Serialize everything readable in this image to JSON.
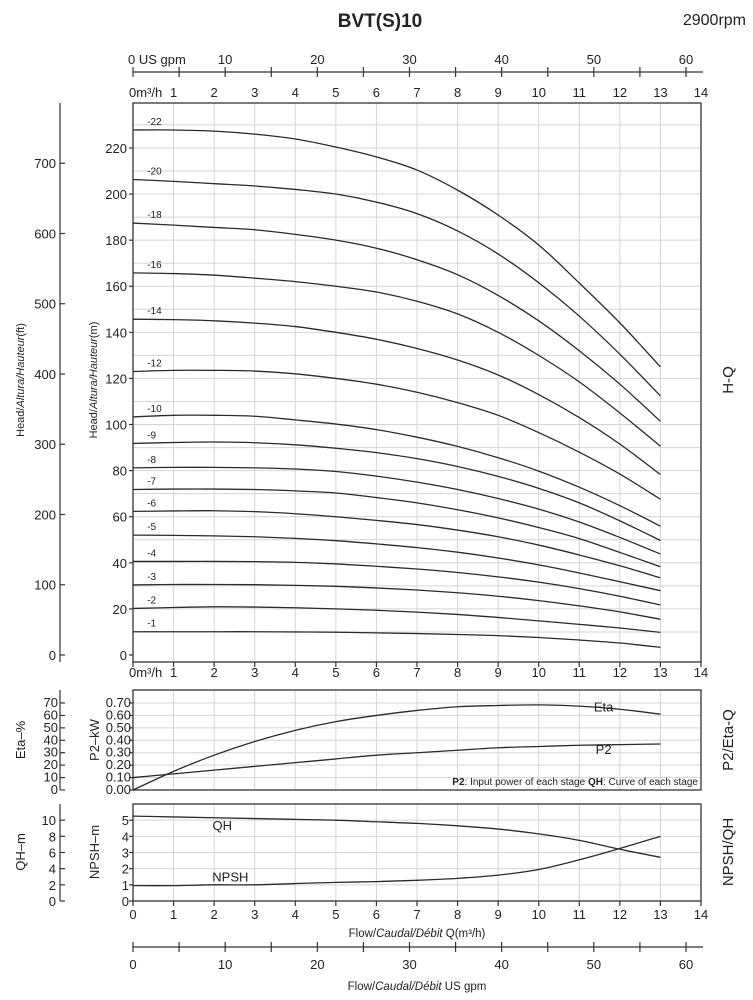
{
  "header": {
    "title": "BVT(S)10",
    "speed": "2900rpm"
  },
  "axes": {
    "flow_m3h_label_top": "0m³/h",
    "flow_m3h_label_bottom": "0m³/h",
    "flow_m3h_ticks": [
      0,
      1,
      2,
      3,
      4,
      5,
      6,
      7,
      8,
      9,
      10,
      11,
      12,
      13,
      14
    ],
    "flow_gpm_label": "0 US gpm",
    "flow_gpm_ticks": [
      0,
      10,
      20,
      30,
      40,
      50,
      60
    ],
    "flow_gpm_minor_step": 5,
    "xlabel_m3h": {
      "a": "Flow/",
      "b": "Caudal/Débit",
      "c": " Q(m³/h)"
    },
    "xlabel_gpm": {
      "a": "Flow/",
      "b": "Caudal/Débit",
      "c": "  US gpm"
    }
  },
  "chart_data": [
    {
      "id": "H-Q",
      "type": "line",
      "side_label": "H-Q",
      "ylabel_m": {
        "a": "Head/",
        "b": "Altura/Hauteur",
        "c": "(m)"
      },
      "ylabel_ft": {
        "a": "Head/",
        "b": "Altura/Hauteur",
        "c": "(ft)"
      },
      "x": [
        0,
        1,
        2,
        3,
        4,
        5,
        6,
        7,
        8,
        9,
        10,
        11,
        12,
        13
      ],
      "xlim": [
        0,
        14
      ],
      "ylim_m": [
        0,
        240
      ],
      "yticks_m": [
        0,
        20,
        40,
        60,
        80,
        100,
        120,
        140,
        160,
        180,
        200,
        220
      ],
      "yticks_ft": [
        0,
        100,
        200,
        300,
        400,
        500,
        600,
        700
      ],
      "grid": true,
      "series": [
        {
          "name": "-1",
          "values": [
            10.1,
            10.1,
            10.1,
            10.1,
            10.0,
            9.9,
            9.6,
            9.3,
            8.9,
            8.4,
            7.6,
            6.5,
            5.2,
            3.3
          ]
        },
        {
          "name": "-2",
          "values": [
            20.2,
            20.6,
            20.9,
            20.8,
            20.5,
            20.0,
            19.4,
            18.6,
            17.6,
            16.3,
            14.8,
            13.3,
            11.7,
            9.8
          ]
        },
        {
          "name": "-3",
          "values": [
            30.4,
            30.6,
            30.6,
            30.5,
            30.2,
            29.8,
            29.1,
            28.2,
            27.0,
            25.5,
            23.6,
            21.3,
            18.7,
            15.5
          ]
        },
        {
          "name": "-4",
          "values": [
            40.6,
            40.6,
            40.6,
            40.5,
            40.2,
            39.5,
            38.5,
            37.3,
            35.8,
            33.9,
            31.6,
            28.8,
            25.5,
            21.7
          ]
        },
        {
          "name": "-5",
          "values": [
            52.0,
            51.9,
            51.7,
            51.3,
            50.6,
            49.6,
            48.2,
            46.6,
            44.6,
            42.1,
            39.1,
            35.6,
            31.8,
            27.9
          ]
        },
        {
          "name": "-6",
          "values": [
            62.3,
            62.5,
            62.6,
            62.2,
            61.3,
            60.0,
            58.4,
            56.6,
            54.2,
            51.3,
            47.7,
            43.4,
            38.7,
            33.5
          ]
        },
        {
          "name": "-7",
          "values": [
            71.8,
            72.0,
            72.0,
            71.8,
            71.2,
            70.3,
            68.3,
            66.0,
            63.0,
            59.5,
            55.3,
            50.5,
            44.5,
            38.3
          ]
        },
        {
          "name": "-8",
          "values": [
            81.2,
            81.4,
            81.4,
            81.2,
            80.7,
            79.6,
            77.6,
            75.0,
            71.8,
            67.9,
            63.3,
            57.7,
            51.0,
            43.8
          ]
        },
        {
          "name": "-9",
          "values": [
            91.8,
            92.2,
            92.4,
            92.1,
            91.2,
            89.7,
            87.8,
            85.2,
            81.8,
            77.5,
            72.3,
            66.0,
            58.2,
            49.7
          ]
        },
        {
          "name": "-10",
          "values": [
            103.3,
            104.0,
            104.0,
            103.6,
            102.0,
            100.2,
            97.8,
            94.5,
            90.5,
            85.6,
            79.8,
            72.8,
            64.8,
            55.9
          ]
        },
        {
          "name": "-12",
          "values": [
            123.0,
            123.5,
            123.5,
            123.2,
            122.0,
            120.0,
            117.5,
            114.0,
            109.5,
            104.0,
            96.5,
            88.0,
            78.5,
            67.6
          ]
        },
        {
          "name": "-14",
          "values": [
            145.7,
            145.5,
            145.0,
            144.0,
            142.5,
            140.0,
            137.0,
            133.0,
            128.0,
            121.5,
            113.0,
            103.0,
            91.5,
            78.3
          ]
        },
        {
          "name": "-16",
          "values": [
            165.8,
            165.5,
            164.8,
            163.5,
            162.0,
            160.0,
            157.5,
            153.5,
            148.0,
            140.0,
            130.0,
            118.5,
            105.0,
            90.6
          ]
        },
        {
          "name": "-18",
          "values": [
            187.4,
            186.5,
            185.5,
            184.5,
            182.5,
            180.0,
            176.5,
            171.5,
            165.0,
            156.0,
            145.0,
            132.0,
            117.5,
            101.4
          ]
        },
        {
          "name": "-20",
          "values": [
            206.3,
            205.5,
            204.5,
            203.5,
            202.0,
            200.0,
            196.5,
            191.5,
            184.0,
            174.0,
            161.5,
            147.0,
            130.5,
            112.4
          ]
        },
        {
          "name": "-22",
          "values": [
            227.8,
            227.8,
            227.3,
            226.0,
            223.9,
            220.4,
            216.1,
            210.4,
            201.7,
            190.9,
            177.9,
            161.4,
            144.1,
            125.0
          ]
        }
      ]
    },
    {
      "id": "P2/Eta-Q",
      "type": "line",
      "side_label": "P2/Eta-Q",
      "ylabel_left": "Eta–%",
      "ylabel_right": "P2–kW",
      "x": [
        0,
        1,
        2,
        3,
        4,
        5,
        6,
        7,
        8,
        9,
        10,
        11,
        12,
        13
      ],
      "xlim": [
        0,
        14
      ],
      "ylim_kw": [
        0,
        0.8
      ],
      "yticks_kw": [
        "0.00",
        "0.10",
        "0.20",
        "0.30",
        "0.40",
        "0.50",
        "0.60",
        "0.70"
      ],
      "yticks_eta": [
        0,
        10,
        20,
        30,
        40,
        50,
        60,
        70
      ],
      "grid": true,
      "note": {
        "b1": "P2",
        "t1": ": Input power of each stage ",
        "b2": "QH",
        "t2": ": Curve of each stage"
      },
      "series": [
        {
          "name": "Eta",
          "unit": "%",
          "values": [
            0,
            15,
            28,
            39,
            48,
            55,
            60,
            64,
            67,
            68,
            68.5,
            67.5,
            65,
            61
          ]
        },
        {
          "name": "P2",
          "unit": "kW",
          "values": [
            0.1,
            0.13,
            0.16,
            0.19,
            0.22,
            0.25,
            0.28,
            0.3,
            0.32,
            0.34,
            0.35,
            0.36,
            0.365,
            0.37
          ]
        }
      ]
    },
    {
      "id": "NPSH/QH",
      "type": "line",
      "side_label": "NPSH/QH",
      "ylabel_left": "QH–m",
      "ylabel_right": "NPSH–m",
      "x": [
        0,
        1,
        2,
        3,
        4,
        5,
        6,
        7,
        8,
        9,
        10,
        11,
        12,
        13
      ],
      "xlim": [
        0,
        14
      ],
      "ylim_npsh": [
        0,
        6
      ],
      "yticks_npsh": [
        0,
        1,
        2,
        3,
        4,
        5
      ],
      "yticks_qh": [
        0,
        2,
        4,
        6,
        8,
        10
      ],
      "grid": true,
      "series": [
        {
          "name": "QH",
          "unit": "m",
          "values": [
            10.5,
            10.4,
            10.3,
            10.2,
            10.1,
            10.0,
            9.8,
            9.6,
            9.3,
            8.9,
            8.3,
            7.5,
            6.4,
            5.4
          ]
        },
        {
          "name": "NPSH",
          "unit": "m",
          "values": [
            0.95,
            0.95,
            1.0,
            1.0,
            1.08,
            1.15,
            1.2,
            1.28,
            1.4,
            1.6,
            1.95,
            2.55,
            3.25,
            4.0
          ]
        }
      ]
    }
  ]
}
